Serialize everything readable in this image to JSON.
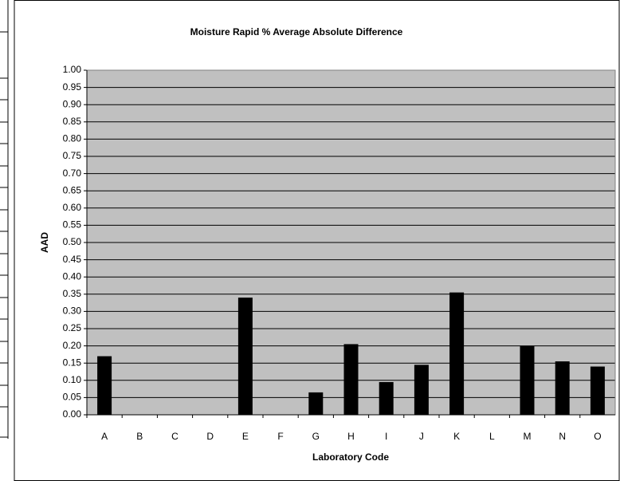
{
  "chart_data": {
    "type": "bar",
    "title": "Moisture Rapid % Average Absolute Difference",
    "x_label": "Laboratory Code",
    "y_label": "AAD",
    "categories": [
      "A",
      "B",
      "C",
      "D",
      "E",
      "F",
      "G",
      "H",
      "I",
      "J",
      "K",
      "L",
      "M",
      "N",
      "O"
    ],
    "values": [
      0.17,
      null,
      null,
      null,
      0.34,
      null,
      0.065,
      0.205,
      0.095,
      0.145,
      0.355,
      null,
      0.2,
      0.155,
      0.14
    ],
    "color": "#000000",
    "ylim": [
      0,
      1
    ],
    "yticks": [
      {
        "value": 0,
        "label": "0.00"
      },
      {
        "value": 0.05,
        "label": "0.05"
      },
      {
        "value": 0.1,
        "label": "0.10"
      },
      {
        "value": 0.15,
        "label": "0.15"
      },
      {
        "value": 0.2,
        "label": "0.20"
      },
      {
        "value": 0.25,
        "label": "0.25"
      },
      {
        "value": 0.3,
        "label": "0.30"
      },
      {
        "value": 0.35,
        "label": "0.35"
      },
      {
        "value": 0.4,
        "label": "0.40"
      },
      {
        "value": 0.45,
        "label": "0.45"
      },
      {
        "value": 0.5,
        "label": "0.50"
      },
      {
        "value": 0.55,
        "label": "0.55"
      },
      {
        "value": 0.6,
        "label": "0.60"
      },
      {
        "value": 0.65,
        "label": "0.65"
      },
      {
        "value": 0.7,
        "label": "0.70"
      },
      {
        "value": 0.75,
        "label": "0.75"
      },
      {
        "value": 0.8,
        "label": "0.80"
      },
      {
        "value": 0.85,
        "label": "0.85"
      },
      {
        "value": 0.9,
        "label": "0.90"
      },
      {
        "value": 0.95,
        "label": "0.95"
      },
      {
        "value": 1,
        "label": "1.00"
      }
    ],
    "grid": true
  }
}
